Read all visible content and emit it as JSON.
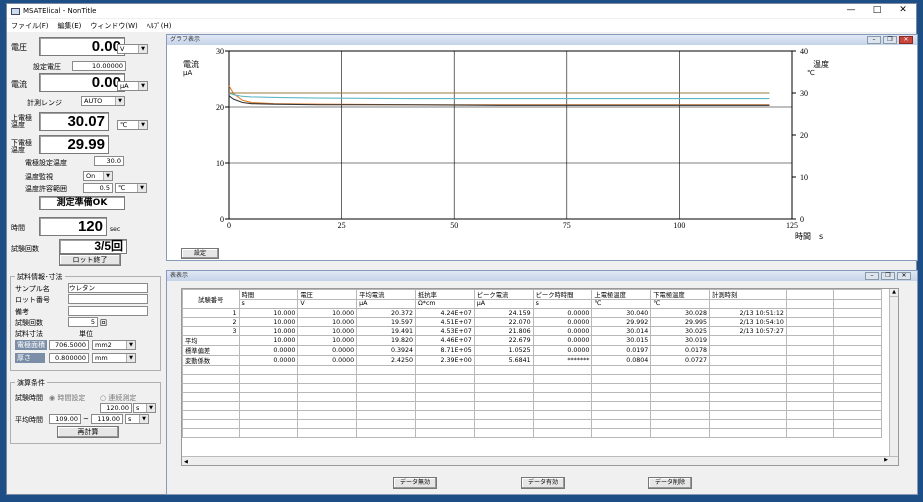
{
  "app": {
    "title": "MSATElical - NonTitle",
    "minimize": "—",
    "maximize": "□",
    "close": "✕"
  },
  "menu": [
    "ファイル(F)",
    "編集(E)",
    "ウィンドウ(W)",
    "ﾍﾙﾌﾟ(H)"
  ],
  "left": {
    "voltage": {
      "label": "電圧",
      "value": "0.00",
      "unit": "V"
    },
    "set_voltage": {
      "label": "設定電圧",
      "value": "10.00000"
    },
    "current": {
      "label": "電流",
      "value": "0.00",
      "unit": "μA"
    },
    "range": {
      "label": "計測レンジ",
      "value": "AUTO"
    },
    "upper_temp": {
      "label": "上電極\n温度",
      "value": "30.07",
      "unit": "℃"
    },
    "lower_temp": {
      "label": "下電極\n温度",
      "value": "29.99"
    },
    "elec_set_temp": {
      "label": "電極設定温度",
      "value": "30.0"
    },
    "temp_monitor": {
      "label": "温度監視",
      "value": "On"
    },
    "temp_tol": {
      "label": "温度許容範囲",
      "value": "0.5",
      "unit": "℃"
    },
    "status": "測定準備OK",
    "time": {
      "label": "時間",
      "value": "120",
      "unit": "sec"
    },
    "count": {
      "label": "試験回数",
      "value": "3/5回"
    },
    "lot_end": "ロット終了",
    "sample": {
      "group": "試料情報･寸法",
      "name_label": "サンプル名",
      "name": "ウレタン",
      "lot_label": "ロット番号",
      "lot": "",
      "note_label": "備考",
      "note": "",
      "tests_label": "試験回数",
      "tests": "5",
      "tests_unit": "回",
      "dim_label": "試料寸法",
      "unit_label": "単位",
      "area_label": "電極面積",
      "area": "706.5000",
      "area_unit": "mm2",
      "thick_label": "厚さ",
      "thick": "0.800000",
      "thick_unit": "mm"
    },
    "calc": {
      "group": "演算条件",
      "time_label": "試験時間",
      "opt1": "時間設定",
      "opt2": "連続測定",
      "time_val": "120.00",
      "time_unit": "s",
      "avg_label": "平均時間",
      "avg_from": "109.00",
      "avg_to": "119.00",
      "avg_unit": "s",
      "recalc": "再計算"
    }
  },
  "graph": {
    "title": "グラフ表示",
    "settings": "設定"
  },
  "chart_data": {
    "type": "line",
    "ylabel": "電流\nμA",
    "y2label": "温度\n℃",
    "xlabel": "時間　s",
    "xlim": [
      0,
      125
    ],
    "ylim": [
      0,
      30
    ],
    "y2lim": [
      0,
      40
    ],
    "xticks": [
      0,
      25,
      50,
      75,
      100,
      125
    ],
    "yticks": [
      0,
      10,
      20,
      30
    ],
    "y2ticks": [
      0,
      10,
      20,
      30,
      40
    ],
    "series": [
      {
        "color": "#e07a2a",
        "x": [
          0,
          1,
          3,
          5,
          10,
          20,
          40,
          60,
          80,
          100,
          120
        ],
        "y": [
          23.8,
          22.4,
          21.2,
          20.8,
          20.6,
          20.5,
          20.4,
          20.4,
          20.4,
          20.4,
          20.4
        ],
        "axis": "left"
      },
      {
        "color": "#5fb8c8",
        "x": [
          0,
          1,
          3,
          5,
          10,
          20,
          40,
          60,
          80,
          100,
          120
        ],
        "y": [
          22.5,
          22.2,
          21.9,
          21.8,
          21.7,
          21.6,
          21.5,
          21.5,
          21.5,
          21.5,
          21.5
        ],
        "axis": "left"
      },
      {
        "color": "#333333",
        "x": [
          0,
          1,
          3,
          5,
          10,
          20,
          40,
          60,
          80,
          100,
          120
        ],
        "y": [
          22.0,
          21.4,
          20.8,
          20.6,
          20.5,
          20.4,
          20.4,
          20.3,
          20.3,
          20.3,
          20.3
        ],
        "axis": "left"
      },
      {
        "color": "#9b7b3a",
        "x": [
          0,
          1,
          3,
          5,
          10,
          20,
          40,
          60,
          80,
          100,
          120
        ],
        "y": [
          30.0,
          30.0,
          30.0,
          30.0,
          30.0,
          30.0,
          30.0,
          30.0,
          30.0,
          30.0,
          30.0
        ],
        "axis": "right"
      }
    ]
  },
  "table": {
    "title": "表表示",
    "headers": [
      [
        "試験番号",
        ""
      ],
      [
        "時間",
        "s"
      ],
      [
        "電圧",
        "V"
      ],
      [
        "平均電流",
        "μA"
      ],
      [
        "抵抗率",
        "Ω*cm"
      ],
      [
        "ピーク電流",
        "μA"
      ],
      [
        "ピーク時時間",
        "s"
      ],
      [
        "上電極温度",
        "℃"
      ],
      [
        "下電極温度",
        "℃"
      ],
      [
        "計測時刻",
        ""
      ],
      [
        "",
        ""
      ],
      [
        "",
        ""
      ]
    ],
    "rows": [
      [
        "1",
        "10.000",
        "10.000",
        "20.372",
        "4.24E+07",
        "24.159",
        "0.0000",
        "30.040",
        "30.028",
        "2/13 10:51:12",
        "",
        ""
      ],
      [
        "2",
        "10.000",
        "10.000",
        "19.597",
        "4.51E+07",
        "22.070",
        "0.0000",
        "29.992",
        "29.995",
        "2/13 10:54:10",
        "",
        ""
      ],
      [
        "3",
        "10.000",
        "10.000",
        "19.491",
        "4.53E+07",
        "21.806",
        "0.0000",
        "30.014",
        "30.025",
        "2/13 10:57:27",
        "",
        ""
      ],
      [
        "平均",
        "10.000",
        "10.000",
        "19.820",
        "4.46E+07",
        "22.679",
        "0.0000",
        "30.015",
        "30.019",
        "",
        "",
        ""
      ],
      [
        "標準偏差",
        "0.0000",
        "0.0000",
        "0.3924",
        "8.71E+05",
        "1.0525",
        "0.0000",
        "0.0197",
        "0.0178",
        "",
        "",
        ""
      ],
      [
        "変動係数",
        "0.0000",
        "0.0000",
        "2.4250",
        "2.39E+00",
        "5.6841",
        "*******",
        "0.0804",
        "0.0727",
        "",
        "",
        ""
      ]
    ],
    "btn_invalid": "データ無効",
    "btn_valid": "データ有効",
    "btn_delete": "データ削除"
  }
}
